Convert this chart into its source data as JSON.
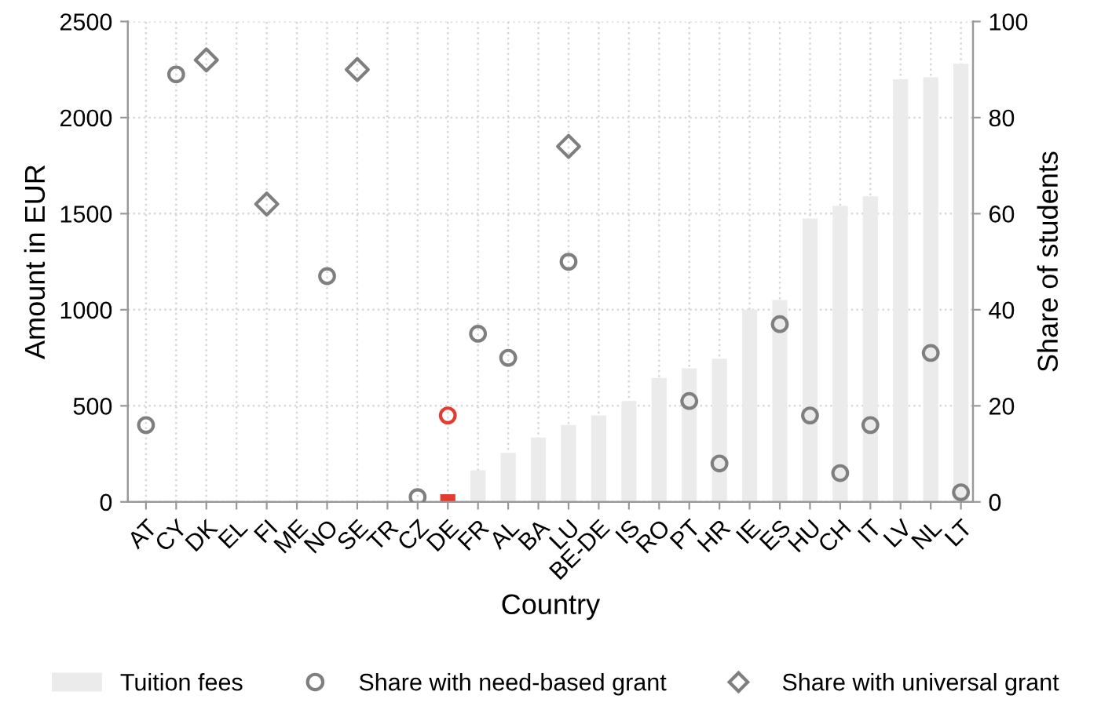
{
  "chart_data": {
    "type": "bar",
    "xlabel": "Country",
    "ylabel": "Amount in EUR",
    "y2label": "Share of students",
    "categories": [
      "AT",
      "CY",
      "DK",
      "EL",
      "FI",
      "ME",
      "NO",
      "SE",
      "TR",
      "CZ",
      "DE",
      "FR",
      "AL",
      "BA",
      "LU",
      "BE-DE",
      "IS",
      "RO",
      "PT",
      "HR",
      "IE",
      "ES",
      "HU",
      "CH",
      "IT",
      "LV",
      "NL",
      "LT"
    ],
    "series": [
      {
        "name": "Tuition fees",
        "color": "#ebebeb",
        "colors": [
          "#ebebeb",
          "#ebebeb",
          "#ebebeb",
          "#ebebeb",
          "#ebebeb",
          "#ebebeb",
          "#ebebeb",
          "#ebebeb",
          "#ebebeb",
          "#ebebeb",
          "#e8392f",
          "#ebebeb",
          "#ebebeb",
          "#ebebeb",
          "#ebebeb",
          "#ebebeb",
          "#ebebeb",
          "#ebebeb",
          "#ebebeb",
          "#ebebeb",
          "#ebebeb",
          "#ebebeb",
          "#ebebeb",
          "#ebebeb",
          "#ebebeb",
          "#ebebeb",
          "#ebebeb",
          "#ebebeb"
        ],
        "values": [
          0,
          0,
          0,
          0,
          0,
          0,
          0,
          0,
          0,
          0,
          40,
          165,
          255,
          335,
          400,
          450,
          525,
          645,
          695,
          745,
          1000,
          1050,
          1475,
          1540,
          1590,
          2200,
          2210,
          2280
        ]
      },
      {
        "name": "Share with need-based grant",
        "type": "scatter",
        "axis": "y2",
        "marker": "circle",
        "color": "#7f7f7f",
        "colors": [
          "#7f7f7f",
          "#7f7f7f",
          "#7f7f7f",
          "#7f7f7f",
          "#7f7f7f",
          "#7f7f7f",
          "#7f7f7f",
          "#7f7f7f",
          "#7f7f7f",
          "#7f7f7f",
          "#e8392f",
          "#7f7f7f",
          "#7f7f7f",
          "#7f7f7f",
          "#7f7f7f",
          "#7f7f7f",
          "#7f7f7f",
          "#7f7f7f",
          "#7f7f7f",
          "#7f7f7f",
          "#7f7f7f",
          "#7f7f7f",
          "#7f7f7f",
          "#7f7f7f",
          "#7f7f7f",
          "#7f7f7f",
          "#7f7f7f",
          "#7f7f7f"
        ],
        "values": [
          16,
          89,
          null,
          null,
          null,
          null,
          47,
          null,
          null,
          1,
          18,
          35,
          30,
          null,
          50,
          null,
          null,
          null,
          21,
          8,
          null,
          37,
          18,
          6,
          16,
          null,
          31,
          2
        ]
      },
      {
        "name": "Share with universal grant",
        "type": "scatter",
        "axis": "y2",
        "marker": "diamond",
        "color": "#7f7f7f",
        "values": [
          null,
          null,
          92,
          null,
          62,
          null,
          null,
          90,
          null,
          null,
          null,
          null,
          null,
          null,
          74,
          null,
          null,
          null,
          null,
          null,
          null,
          null,
          null,
          null,
          null,
          null,
          null,
          null
        ]
      }
    ],
    "ylim": [
      0,
      2500
    ],
    "yticks": [
      0,
      500,
      1000,
      1500,
      2000,
      2500
    ],
    "y2lim": [
      0,
      100
    ],
    "y2ticks": [
      0,
      20,
      40,
      60,
      80,
      100
    ],
    "grid": true,
    "legend": "bottom"
  }
}
